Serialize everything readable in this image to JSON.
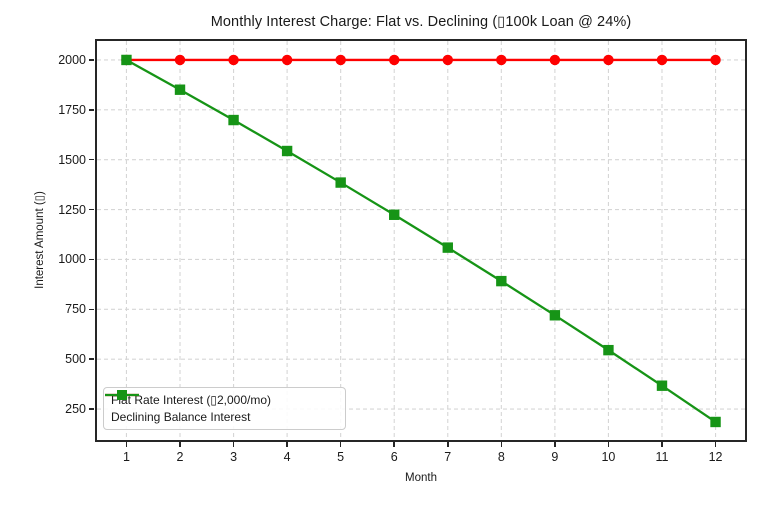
{
  "chart_data": {
    "type": "line",
    "title": "Monthly Interest Charge: Flat vs. Declining (▯100k Loan @ 24%)",
    "xlabel": "Month",
    "ylabel": "Interest Amount (▯)",
    "x": [
      1,
      2,
      3,
      4,
      5,
      6,
      7,
      8,
      9,
      10,
      11,
      12
    ],
    "series": [
      {
        "name": "Flat Rate Interest (▯2,000/mo)",
        "color": "#fe0000",
        "marker": "circle",
        "values": [
          2000,
          2000,
          2000,
          2000,
          2000,
          2000,
          2000,
          2000,
          2000,
          2000,
          2000,
          2000
        ]
      },
      {
        "name": "Declining Balance Interest",
        "color": "#169416",
        "marker": "square",
        "values": [
          2000.0,
          1850.88,
          1698.78,
          1543.64,
          1385.39,
          1223.98,
          1059.34,
          891.41,
          720.11,
          545.4,
          367.19,
          185.41
        ]
      }
    ],
    "xticks": [
      1,
      2,
      3,
      4,
      5,
      6,
      7,
      8,
      9,
      10,
      11,
      12
    ],
    "yticks": [
      250,
      500,
      750,
      1000,
      1250,
      1500,
      1750,
      2000
    ],
    "xlim": [
      0.45,
      12.55
    ],
    "ylim": [
      95,
      2095
    ],
    "grid": true,
    "legend_position": "lower left"
  },
  "style": {
    "grid_color": "#d6d6d6",
    "spine_color": "#262626",
    "text_color": "#1a1a1a",
    "legend_border": "#cccccc"
  }
}
